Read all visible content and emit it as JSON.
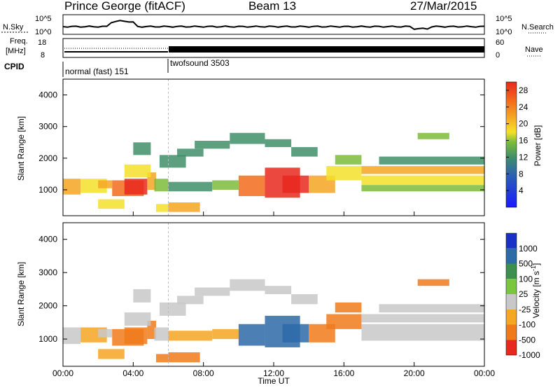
{
  "header": {
    "station": "Prince George (fitACF)",
    "beam": "Beam 13",
    "date": "27/Mar/2015"
  },
  "noise_panel": {
    "left_label": "N.Sky",
    "left_ticks": [
      "10^5",
      "10^0"
    ],
    "right_ticks": [
      "10^5",
      "10^0"
    ],
    "right_label": "N.Search"
  },
  "freq_panel": {
    "left_label_line1": "Freq.",
    "left_label_line2": "[MHz]",
    "left_ticks": [
      "18",
      "8"
    ],
    "right_ticks": [
      "60",
      "0"
    ],
    "right_label": "Nave"
  },
  "cpid": {
    "label": "CPID",
    "segments": [
      {
        "name": "normal (fast) 151",
        "start_h": 0,
        "end_h": 6
      },
      {
        "name": "twofsound 3503",
        "start_h": 6,
        "end_h": 24
      }
    ]
  },
  "x_axis": {
    "label": "Time UT",
    "ticks": [
      "00:00",
      "04:00",
      "08:00",
      "12:00",
      "16:00",
      "20:00",
      "00:00"
    ],
    "range_hours": [
      0,
      24
    ]
  },
  "power_panel": {
    "ylabel": "Slant Range [km]",
    "yticks": [
      "1000",
      "2000",
      "3000",
      "4000"
    ],
    "cbar_label": "Power [dB]",
    "cbar_ticks": [
      "4",
      "8",
      "12",
      "16",
      "20",
      "24",
      "28"
    ]
  },
  "velocity_panel": {
    "ylabel": "Slant Range [km]",
    "yticks": [
      "1000",
      "2000",
      "3000",
      "4000"
    ],
    "cbar_label": "Velocity",
    "cbar_unit": "[m s",
    "cbar_unit_sup": "-1",
    "cbar_unit_end": "]",
    "cbar_ticks": [
      "1000",
      "500",
      "100",
      "25",
      "-25",
      "-100",
      "-500",
      "-1000"
    ]
  },
  "chart_data": {
    "type": "heatmap",
    "title": "Prince George (fitACF)",
    "xlabel": "Time UT",
    "ylabel": "Slant Range [km]",
    "xlim_hours": [
      0,
      24
    ],
    "ylim_km": [
      180,
      4500
    ],
    "power_scale_db": [
      0,
      30
    ],
    "velocity_scale_ms": [
      -1000,
      1000
    ],
    "power_colors": [
      "#1a1aff",
      "#2b5fb5",
      "#3f8f6a",
      "#7cbb3a",
      "#f5e12a",
      "#f5a623",
      "#f36b1c",
      "#e8281e"
    ],
    "velocity_colors": [
      "#1830c8",
      "#2d6aa8",
      "#3c8f4e",
      "#7ac63c",
      "#c8c8c8",
      "#f5a623",
      "#f07a1a",
      "#e8281e"
    ],
    "regions": [
      {
        "t": [
          0.0,
          1.0
        ],
        "r": [
          850,
          1350
        ],
        "power": 20,
        "vel": 10
      },
      {
        "t": [
          1.0,
          2.5
        ],
        "r": [
          900,
          1350
        ],
        "power": 16,
        "vel": -40
      },
      {
        "t": [
          2.0,
          2.8
        ],
        "r": [
          1050,
          1300
        ],
        "power": 21,
        "vel": 10
      },
      {
        "t": [
          2.8,
          4.6
        ],
        "r": [
          800,
          1300
        ],
        "power": 23,
        "vel": -350
      },
      {
        "t": [
          3.5,
          4.8
        ],
        "r": [
          850,
          1350
        ],
        "power": 27,
        "vel": -500
      },
      {
        "t": [
          4.8,
          5.3
        ],
        "r": [
          1000,
          1550
        ],
        "power": 20,
        "vel": -200
      },
      {
        "t": [
          2.0,
          3.5
        ],
        "r": [
          400,
          700
        ],
        "power": 16,
        "vel": -80
      },
      {
        "t": [
          3.5,
          5.0
        ],
        "r": [
          1400,
          1800
        ],
        "power": 15,
        "vel": 20
      },
      {
        "t": [
          4.0,
          5.0
        ],
        "r": [
          2100,
          2500
        ],
        "power": 9,
        "vel": 10
      },
      {
        "t": [
          5.2,
          6.0
        ],
        "r": [
          950,
          1350
        ],
        "power": 13,
        "vel": 10
      },
      {
        "t": [
          5.3,
          6.0
        ],
        "r": [
          300,
          550
        ],
        "power": 18,
        "vel": -150
      },
      {
        "t": [
          6.0,
          7.8
        ],
        "r": [
          300,
          600
        ],
        "power": 22,
        "vel": -300
      },
      {
        "t": [
          5.5,
          7.0
        ],
        "r": [
          1700,
          2100
        ],
        "power": 10,
        "vel": 10
      },
      {
        "t": [
          6.5,
          8.0
        ],
        "r": [
          2050,
          2300
        ],
        "power": 10,
        "vel": 10
      },
      {
        "t": [
          7.5,
          9.5
        ],
        "r": [
          2300,
          2550
        ],
        "power": 9,
        "vel": 10
      },
      {
        "t": [
          9.5,
          11.5
        ],
        "r": [
          2450,
          2800
        ],
        "power": 11,
        "vel": 10
      },
      {
        "t": [
          11.5,
          13.0
        ],
        "r": [
          2350,
          2600
        ],
        "power": 10,
        "vel": 10
      },
      {
        "t": [
          13.0,
          14.5
        ],
        "r": [
          2050,
          2350
        ],
        "power": 9,
        "vel": 10
      },
      {
        "t": [
          6.0,
          8.5
        ],
        "r": [
          950,
          1250
        ],
        "power": 9,
        "vel": -30
      },
      {
        "t": [
          8.5,
          10.0
        ],
        "r": [
          1000,
          1300
        ],
        "power": 13,
        "vel": -40
      },
      {
        "t": [
          10.0,
          11.5
        ],
        "r": [
          800,
          1450
        ],
        "power": 26,
        "vel": 150
      },
      {
        "t": [
          11.5,
          13.5
        ],
        "r": [
          750,
          1700
        ],
        "power": 29,
        "vel": 250
      },
      {
        "t": [
          12.5,
          14.0
        ],
        "r": [
          900,
          1450
        ],
        "power": 27,
        "vel": 200
      },
      {
        "t": [
          14.0,
          15.5
        ],
        "r": [
          900,
          1450
        ],
        "power": 21,
        "vel": -150
      },
      {
        "t": [
          15.0,
          17.0
        ],
        "r": [
          1300,
          1750
        ],
        "power": 16,
        "vel": -300
      },
      {
        "t": [
          15.5,
          17.0
        ],
        "r": [
          1800,
          2100
        ],
        "power": 13,
        "vel": -400
      },
      {
        "t": [
          17.0,
          24.0
        ],
        "r": [
          1500,
          1750
        ],
        "power": 21,
        "vel": 10
      },
      {
        "t": [
          17.0,
          24.0
        ],
        "r": [
          1150,
          1450
        ],
        "power": 17,
        "vel": 10
      },
      {
        "t": [
          17.0,
          24.0
        ],
        "r": [
          950,
          1150
        ],
        "power": 13,
        "vel": 10
      },
      {
        "t": [
          18.0,
          24.0
        ],
        "r": [
          1800,
          2050
        ],
        "power": 11,
        "vel": 10
      },
      {
        "t": [
          20.2,
          22.0
        ],
        "r": [
          2600,
          2800
        ],
        "power": 14,
        "vel": -300
      }
    ]
  }
}
